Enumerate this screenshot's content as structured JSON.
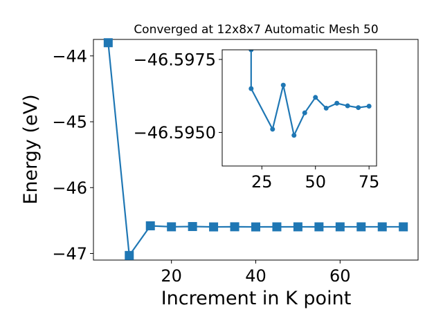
{
  "chart_data": [
    {
      "type": "line",
      "title": "Converged at 12x8x7 Automatic Mesh 50",
      "xlabel": "Increment in K point",
      "ylabel": "Energy (eV)",
      "xlim": [
        1.5,
        78.5
      ],
      "ylim": [
        -47.1,
        -43.75
      ],
      "xticks": [
        20,
        40,
        60
      ],
      "yticks": [
        -47,
        -46,
        -45,
        -44
      ],
      "x_tick_labels": [
        "20",
        "40",
        "60"
      ],
      "y_tick_labels": [
        "−47",
        "−46",
        "−45",
        "−44"
      ],
      "marker": "square",
      "color": "#1f77b4",
      "grid": false,
      "series": [
        {
          "x": [
            5,
            10,
            15,
            20,
            25,
            30,
            35,
            40,
            45,
            50,
            55,
            60,
            65,
            70,
            75
          ],
          "values": [
            -43.8,
            -47.03,
            -46.58,
            -46.595,
            -46.591,
            -46.5965,
            -46.5946,
            -46.5967,
            -46.5957,
            -46.5955,
            -46.5956,
            -46.5955,
            -46.5955,
            -46.5955,
            -46.5955
          ]
        }
      ]
    },
    {
      "type": "line",
      "title": "",
      "xlabel": "",
      "ylabel": "",
      "xlim": [
        6.5,
        78.5
      ],
      "ylim": [
        -46.59385,
        -46.59783
      ],
      "xticks": [
        25,
        50,
        75
      ],
      "yticks": [
        -46.5975,
        -46.595
      ],
      "x_tick_labels": [
        "25",
        "50",
        "75"
      ],
      "y_tick_labels": [
        "−46.5975",
        "−46.5950"
      ],
      "marker": "circle",
      "color": "#1f77b4",
      "grid": false,
      "series": [
        {
          "x": [
            20,
            20,
            30,
            35,
            40,
            45,
            50,
            55,
            60,
            65,
            70,
            75
          ],
          "values": [
            -46.59783,
            -46.5965,
            -46.59511,
            -46.59662,
            -46.5949,
            -46.59567,
            -46.5962,
            -46.59583,
            -46.596,
            -46.59591,
            -46.59585,
            -46.5959
          ]
        }
      ]
    }
  ]
}
